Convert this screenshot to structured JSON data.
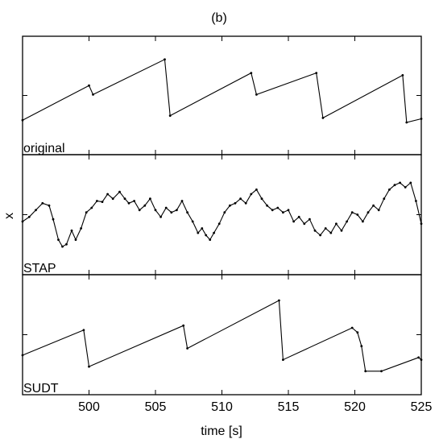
{
  "figure": {
    "panel_tag": "(b)",
    "xlabel": "time [s]",
    "ylabel": "x"
  },
  "chart_data": {
    "type": "line",
    "title": "(b)",
    "xlabel": "time [s]",
    "ylabel": "x",
    "xlim": [
      495,
      525
    ],
    "x_ticks": [
      500,
      505,
      510,
      515,
      520,
      525
    ],
    "x_tick_labels": [
      "500",
      "505",
      "510",
      "515",
      "520",
      "525"
    ],
    "grid": false,
    "legend": "none",
    "panels": [
      {
        "label": "original",
        "ylim": [
          -1,
          1
        ],
        "series": [
          {
            "x": [
              495.0,
              500.0,
              500.3,
              505.7,
              506.1,
              512.2,
              512.6,
              517.1,
              517.6,
              523.6,
              523.9,
              525.0
            ],
            "y": [
              -0.55,
              0.22,
              0.02,
              0.8,
              -0.45,
              0.5,
              0.02,
              0.5,
              -0.5,
              0.45,
              -0.6,
              -0.52
            ]
          }
        ]
      },
      {
        "label": "STAP",
        "ylim": [
          -1,
          1
        ],
        "series": [
          {
            "x": [
              495.0,
              495.5,
              496.0,
              496.5,
              497.0,
              497.3,
              497.7,
              498.0,
              498.3,
              498.7,
              499.0,
              499.4,
              499.8,
              500.2,
              500.6,
              501.0,
              501.4,
              501.8,
              502.3,
              502.7,
              503.0,
              503.4,
              503.8,
              504.2,
              504.6,
              505.0,
              505.4,
              505.8,
              506.2,
              506.6,
              507.0,
              507.4,
              507.8,
              508.2,
              508.5,
              508.8,
              509.1,
              509.4,
              509.8,
              510.2,
              510.6,
              511.0,
              511.4,
              511.8,
              512.2,
              512.6,
              513.0,
              513.4,
              513.8,
              514.2,
              514.6,
              515.0,
              515.4,
              515.8,
              516.2,
              516.6,
              517.0,
              517.4,
              517.8,
              518.2,
              518.6,
              519.0,
              519.4,
              519.8,
              520.2,
              520.6,
              521.0,
              521.4,
              521.8,
              522.2,
              522.6,
              523.0,
              523.4,
              523.8,
              524.2,
              524.6,
              525.0
            ],
            "y": [
              -0.15,
              -0.05,
              0.1,
              0.25,
              0.2,
              -0.1,
              -0.55,
              -0.7,
              -0.65,
              -0.35,
              -0.55,
              -0.3,
              0.05,
              0.15,
              0.3,
              0.28,
              0.45,
              0.35,
              0.5,
              0.35,
              0.25,
              0.3,
              0.1,
              0.2,
              0.35,
              0.1,
              -0.05,
              0.15,
              0.05,
              0.1,
              0.3,
              0.05,
              -0.15,
              -0.4,
              -0.3,
              -0.45,
              -0.55,
              -0.4,
              -0.2,
              0.05,
              0.2,
              0.25,
              0.35,
              0.25,
              0.45,
              0.55,
              0.35,
              0.2,
              0.1,
              0.15,
              0.05,
              0.1,
              -0.15,
              -0.05,
              -0.2,
              -0.1,
              -0.35,
              -0.45,
              -0.3,
              -0.4,
              -0.2,
              -0.35,
              -0.15,
              0.05,
              0.0,
              -0.15,
              0.05,
              0.2,
              0.1,
              0.35,
              0.55,
              0.65,
              0.7,
              0.6,
              0.7,
              0.3,
              -0.2
            ]
          }
        ]
      },
      {
        "label": "SUDT",
        "ylim": [
          -1,
          1
        ],
        "series": [
          {
            "x": [
              495.0,
              499.6,
              500.0,
              507.1,
              507.4,
              514.3,
              514.6,
              519.8,
              520.2,
              520.5,
              520.8,
              522.0,
              524.8,
              525.0
            ],
            "y": [
              -0.45,
              0.1,
              -0.7,
              0.2,
              -0.3,
              0.75,
              -0.55,
              0.15,
              0.05,
              -0.25,
              -0.8,
              -0.8,
              -0.5,
              -0.55
            ]
          }
        ]
      }
    ]
  }
}
